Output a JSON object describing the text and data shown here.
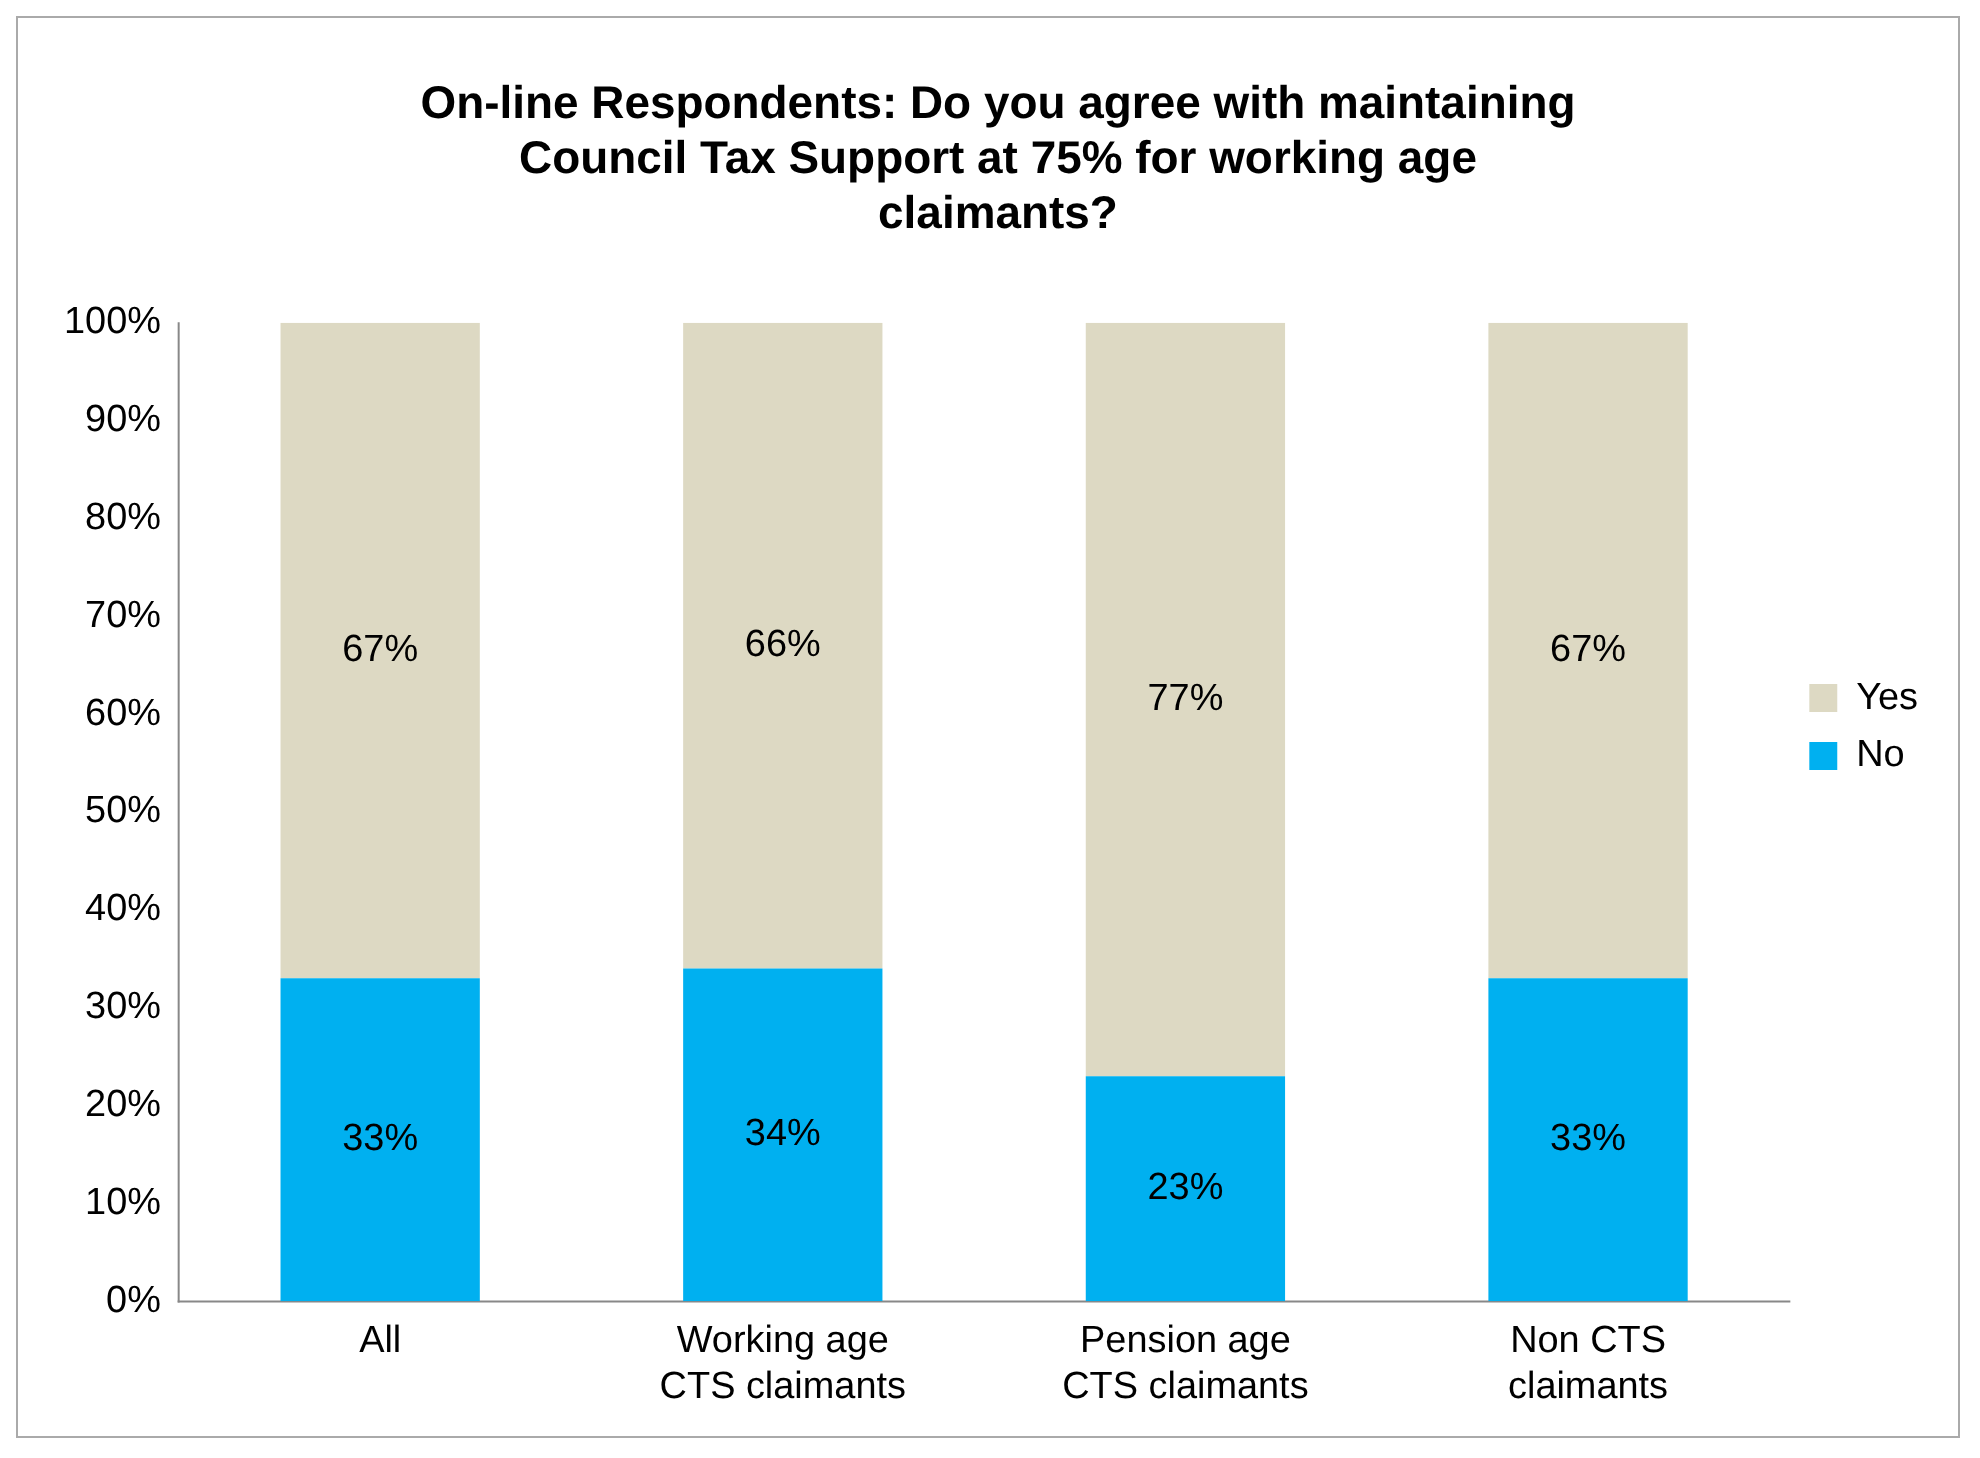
{
  "chart_data": {
    "type": "bar",
    "title": "On-line Respondents: Do you agree with maintaining Council Tax Support at 75% for working age claimants?",
    "categories": [
      "All",
      "Working age CTS claimants",
      "Pension age CTS claimants",
      "Non CTS claimants"
    ],
    "series": [
      {
        "name": "No",
        "color": "#00b0f0",
        "values": [
          33,
          34,
          23,
          33
        ],
        "value_labels": [
          "33%",
          "34%",
          "23%",
          "33%"
        ]
      },
      {
        "name": "Yes",
        "color": "#ddd9c3",
        "values": [
          67,
          66,
          77,
          67
        ],
        "value_labels": [
          "67%",
          "66%",
          "77%",
          "67%"
        ]
      }
    ],
    "stacked": true,
    "ylim": [
      0,
      100
    ],
    "yticks": [
      {
        "value": 0,
        "label": "0%"
      },
      {
        "value": 10,
        "label": "10%"
      },
      {
        "value": 20,
        "label": "20%"
      },
      {
        "value": 30,
        "label": "30%"
      },
      {
        "value": 40,
        "label": "40%"
      },
      {
        "value": 50,
        "label": "50%"
      },
      {
        "value": 60,
        "label": "60%"
      },
      {
        "value": 70,
        "label": "70%"
      },
      {
        "value": 80,
        "label": "80%"
      },
      {
        "value": 90,
        "label": "90%"
      },
      {
        "value": 100,
        "label": "100%"
      }
    ],
    "grid": false,
    "legend": "right"
  }
}
